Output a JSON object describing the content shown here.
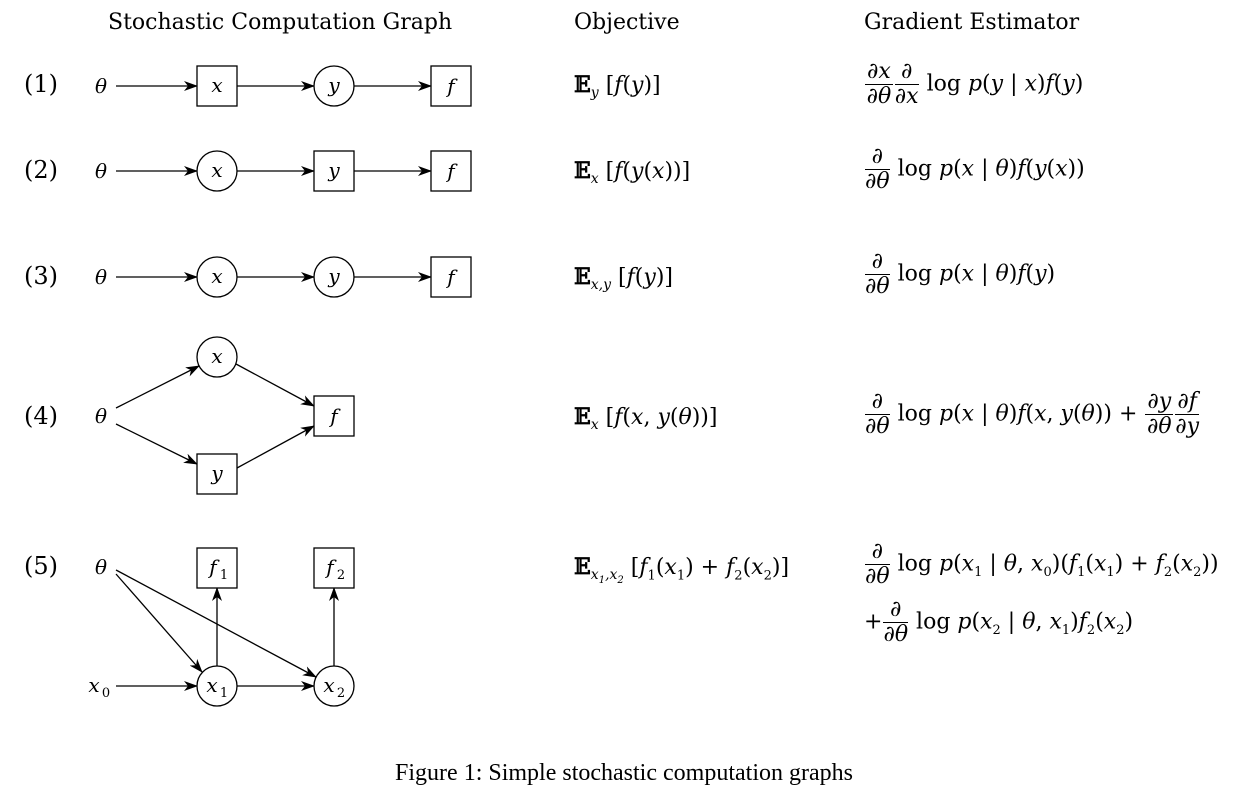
{
  "headers": {
    "graph": "Stochastic Computation Graph",
    "objective": "Objective",
    "estimator": "Gradient Estimator"
  },
  "rows": [
    {
      "label": "(1)"
    },
    {
      "label": "(2)"
    },
    {
      "label": "(3)"
    },
    {
      "label": "(4)"
    },
    {
      "label": "(5)"
    }
  ],
  "symbols": {
    "theta": "θ",
    "x": "x",
    "y": "y",
    "f": "f",
    "f1": "f",
    "f2": "f",
    "x0": "x",
    "x1": "x",
    "x2": "x",
    "sub0": "0",
    "sub1": "1",
    "sub2": "2"
  },
  "caption": "Figure 1: Simple stochastic computation graphs"
}
